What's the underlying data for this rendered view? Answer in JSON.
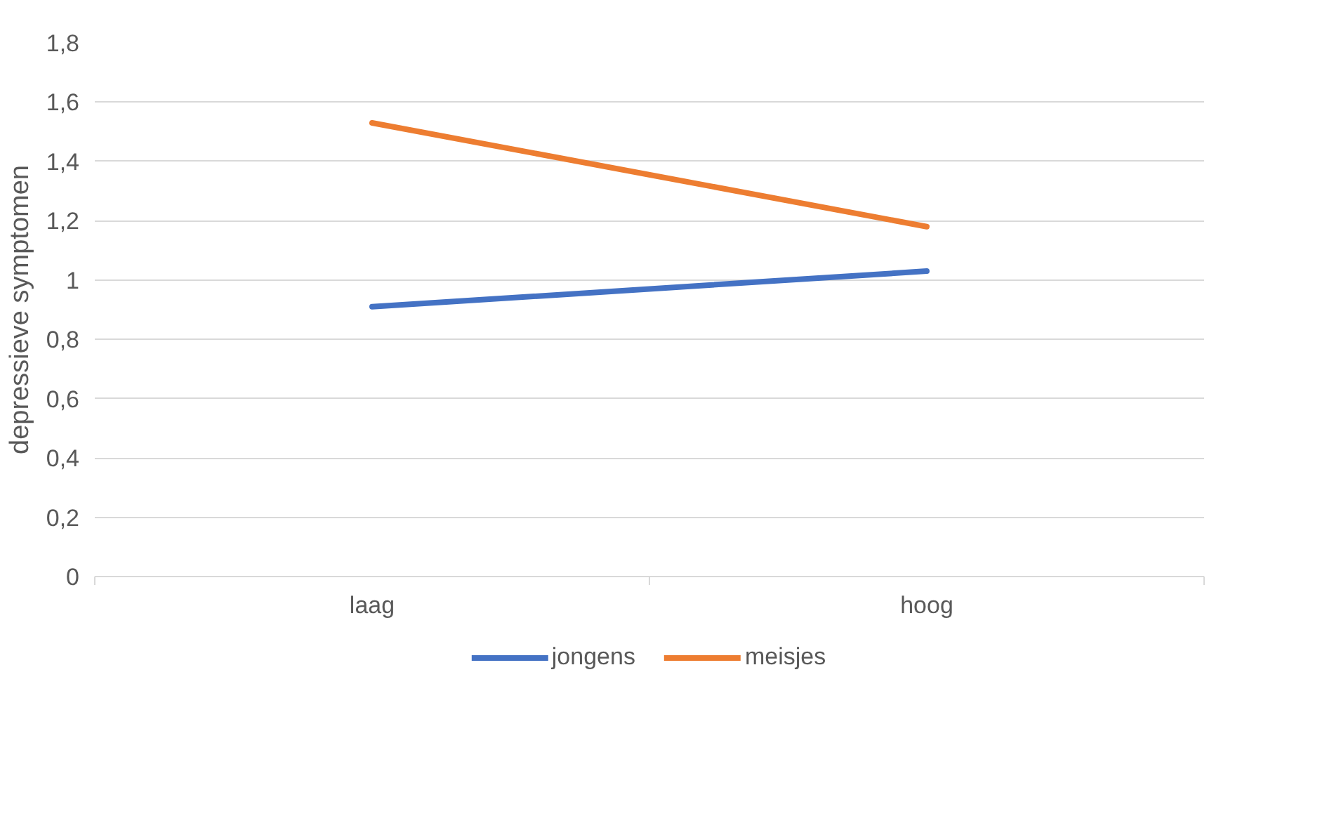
{
  "chart_data": {
    "type": "line",
    "ylabel": "depressieve symptomen",
    "categories": [
      "laag",
      "hoog"
    ],
    "series": [
      {
        "name": "jongens",
        "color": "#4472c4",
        "values": [
          0.91,
          1.03
        ]
      },
      {
        "name": "meisjes",
        "color": "#ed7d31",
        "values": [
          1.53,
          1.18
        ]
      }
    ],
    "ylim": [
      0,
      1.8
    ],
    "yticks": [
      0,
      {
        "value": 0.2,
        "label": "0,2"
      },
      {
        "value": 0.4,
        "label": "0,4"
      },
      {
        "value": 0.6,
        "label": "0,6"
      },
      {
        "value": 0.8,
        "label": "0,8"
      },
      1,
      {
        "value": 1.2,
        "label": "1,2"
      },
      {
        "value": 1.4,
        "label": "1,4"
      },
      {
        "value": 1.6,
        "label": "1,6"
      },
      {
        "value": 1.8,
        "label": "1,8"
      }
    ],
    "grid": "y",
    "legend": "bottom",
    "marker": "none",
    "line_style": "solid"
  }
}
